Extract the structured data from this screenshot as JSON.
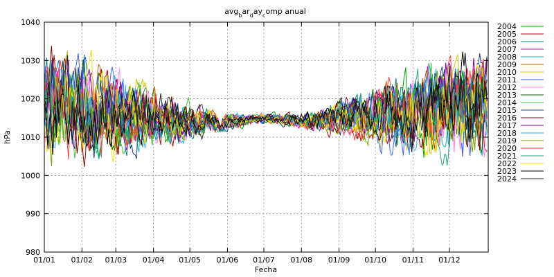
{
  "chart_data": {
    "type": "line",
    "title_main": "avg",
    "title_sub1": "b",
    "title_mid1": "ar",
    "title_sub2": "d",
    "title_mid2": "ay",
    "title_sub3": "c",
    "title_end": "omp anual",
    "xlabel": "Fecha",
    "ylabel": "hPa",
    "ylim": [
      980,
      1040
    ],
    "yticks": [
      980,
      990,
      1000,
      1010,
      1020,
      1030,
      1040
    ],
    "xlim": [
      0,
      366
    ],
    "xticks": [
      {
        "day": 0,
        "label": "01/01"
      },
      {
        "day": 31,
        "label": "01/02"
      },
      {
        "day": 59,
        "label": "01/03"
      },
      {
        "day": 90,
        "label": "01/04"
      },
      {
        "day": 120,
        "label": "01/05"
      },
      {
        "day": 151,
        "label": "01/06"
      },
      {
        "day": 181,
        "label": "01/07"
      },
      {
        "day": 212,
        "label": "01/08"
      },
      {
        "day": 243,
        "label": "01/09"
      },
      {
        "day": 273,
        "label": "01/10"
      },
      {
        "day": 304,
        "label": "01/11"
      },
      {
        "day": 334,
        "label": "01/12"
      }
    ],
    "grid": true,
    "legend_position": "right",
    "series_daily_mean_profile": {
      "x": [
        0,
        31,
        59,
        90,
        120,
        151,
        181,
        212,
        243,
        273,
        304,
        334,
        366
      ],
      "y": [
        1018,
        1017,
        1016,
        1015,
        1014,
        1014,
        1015,
        1014,
        1015,
        1016,
        1016,
        1018,
        1019
      ]
    },
    "series": [
      {
        "name": "2004",
        "color": "#00a000"
      },
      {
        "name": "2005",
        "color": "#c00000"
      },
      {
        "name": "2006",
        "color": "#008080"
      },
      {
        "name": "2007",
        "color": "#c000c0"
      },
      {
        "name": "2008",
        "color": "#00c0c0"
      },
      {
        "name": "2009",
        "color": "#c06000"
      },
      {
        "name": "2010",
        "color": "#c8c800"
      },
      {
        "name": "2011",
        "color": "#4060ff"
      },
      {
        "name": "2012",
        "color": "#ff80ff"
      },
      {
        "name": "2013",
        "color": "#006000"
      },
      {
        "name": "2014",
        "color": "#40c040"
      },
      {
        "name": "2015",
        "color": "#204080"
      },
      {
        "name": "2016",
        "color": "#800000"
      },
      {
        "name": "2017",
        "color": "#8000a0"
      },
      {
        "name": "2018",
        "color": "#40a0ff"
      },
      {
        "name": "2019",
        "color": "#80a000"
      },
      {
        "name": "2020",
        "color": "#ff4040"
      },
      {
        "name": "2021",
        "color": "#20a080"
      },
      {
        "name": "2022",
        "color": "#ffe000"
      },
      {
        "name": "2023",
        "color": "#000000"
      },
      {
        "name": "2024",
        "color": "#202020"
      }
    ]
  }
}
